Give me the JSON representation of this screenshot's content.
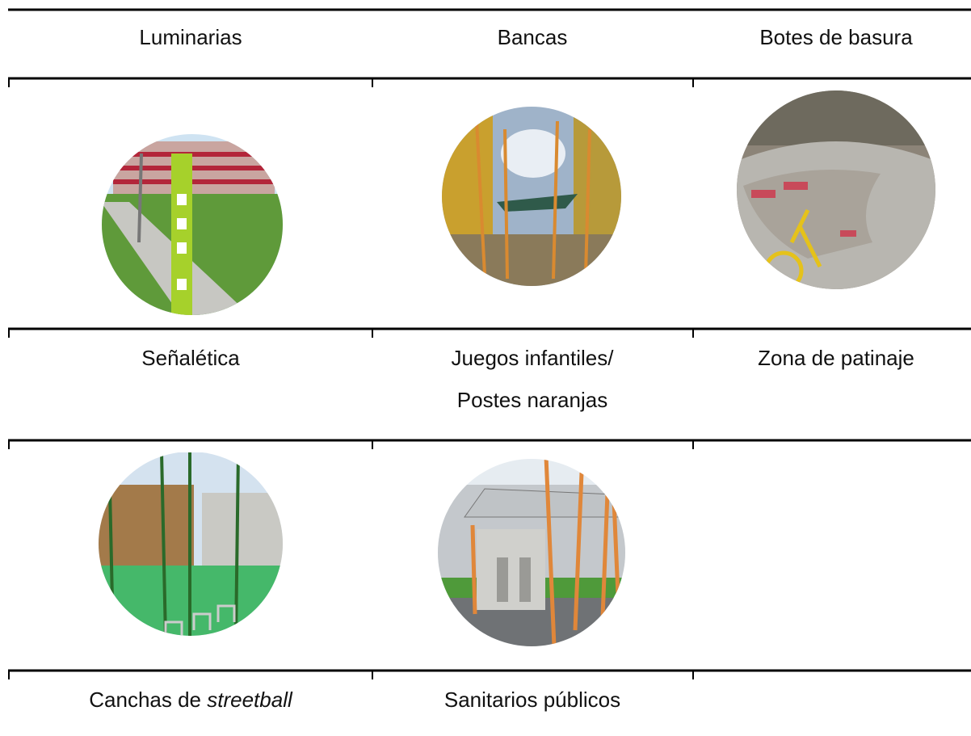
{
  "table": {
    "rows": [
      [
        "Luminarias",
        "Bancas",
        "Botes de basura"
      ],
      [
        "Señalética",
        [
          "Juegos infantiles/",
          "Postes naranjas"
        ],
        "Zona de patinaje"
      ],
      [
        {
          "plain": "Canchas de",
          "italic": "streetball"
        },
        "Sanitarios públicos"
      ]
    ]
  }
}
